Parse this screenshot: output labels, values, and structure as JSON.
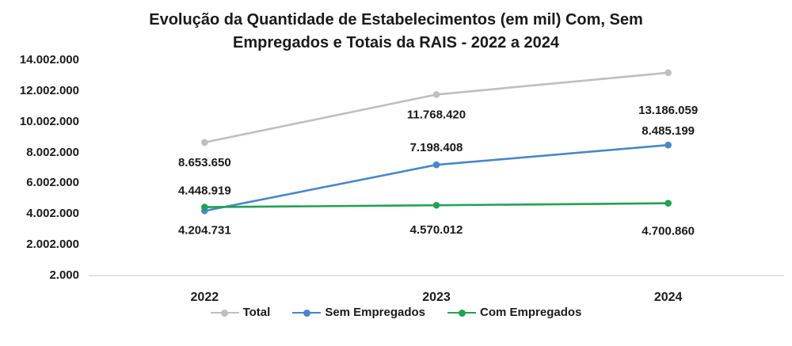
{
  "title": {
    "line1": "Evolução da Quantidade de Estabelecimentos (em mil) Com, Sem",
    "line2": "Empregados e Totais da RAIS - 2022 a 2024"
  },
  "chart_data": {
    "type": "line",
    "title": "Evolução da Quantidade de Estabelecimentos (em mil) Com, Sem Empregados e Totais da RAIS - 2022 a 2024",
    "categories": [
      "2022",
      "2023",
      "2024"
    ],
    "series": [
      {
        "name": "Total",
        "color": "#BFBFBF",
        "values": [
          8653650,
          11768420,
          13186059
        ],
        "labels": [
          "8.653.650",
          "11.768.420",
          "13.186.059"
        ],
        "label_dy": [
          26,
          26,
          48
        ]
      },
      {
        "name": "Sem Empregados",
        "color": "#4A86C8",
        "values": [
          4204731,
          7198408,
          8485199
        ],
        "labels": [
          "4.204.731",
          "7.198.408",
          "8.485.199"
        ],
        "label_dy": [
          25,
          -21,
          -17
        ]
      },
      {
        "name": "Com Empregados",
        "color": "#21A155",
        "values": [
          4448919,
          4570012,
          4700860
        ],
        "labels": [
          "4.448.919",
          "4.570.012",
          "4.700.860"
        ],
        "label_dy": [
          -20,
          32,
          36
        ]
      }
    ],
    "y_axis": {
      "tick_labels": [
        "14.002.000",
        "12.002.000",
        "10.002.000",
        "8.002.000",
        "6.002.000",
        "4.002.000",
        "2.002.000",
        "2.000"
      ],
      "min": 2000,
      "max": 14002000,
      "major_unit": 2000000
    },
    "legend_position": "bottom",
    "grid": false,
    "axis_line_color": "#D9D9D9"
  }
}
